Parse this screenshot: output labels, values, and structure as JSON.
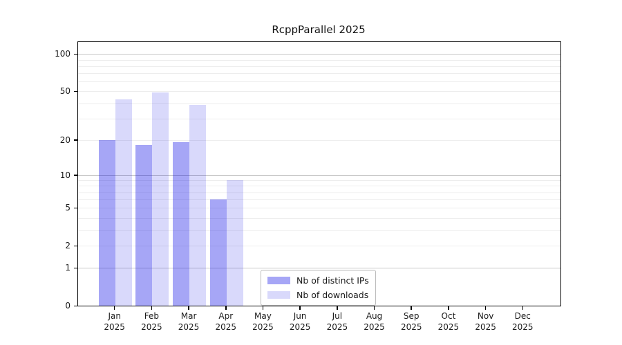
{
  "chart_data": {
    "type": "bar",
    "title": "RcppParallel 2025",
    "categories": [
      "Jan",
      "Feb",
      "Mar",
      "Apr",
      "May",
      "Jun",
      "Jul",
      "Aug",
      "Sep",
      "Oct",
      "Nov",
      "Dec"
    ],
    "year_label": "2025",
    "series": [
      {
        "name": "Nb of distinct IPs",
        "color": "rgba(0,0,230,0.35)",
        "values": [
          20,
          18,
          19,
          6,
          0,
          0,
          0,
          0,
          0,
          0,
          0,
          0
        ]
      },
      {
        "name": "Nb of downloads",
        "color": "rgba(0,0,230,0.15)",
        "values": [
          43,
          49,
          39,
          9,
          0,
          0,
          0,
          0,
          0,
          0,
          0,
          0
        ]
      }
    ],
    "yscale": "log1p",
    "ylim": [
      0,
      125
    ],
    "yticks": [
      100,
      50,
      20,
      10,
      5,
      2,
      1,
      0
    ],
    "grid_major": [
      1,
      10,
      100
    ],
    "grid_minor": [
      2,
      3,
      4,
      5,
      6,
      7,
      8,
      9,
      20,
      30,
      40,
      50,
      60,
      70,
      80,
      90
    ],
    "grid_on": true,
    "legend_position": "inside-bottom-center",
    "colors": {
      "grid_major": "#c6c6c6",
      "grid_minor": "#ededed",
      "axis": "#000000",
      "text": "#1a1a1a"
    }
  }
}
